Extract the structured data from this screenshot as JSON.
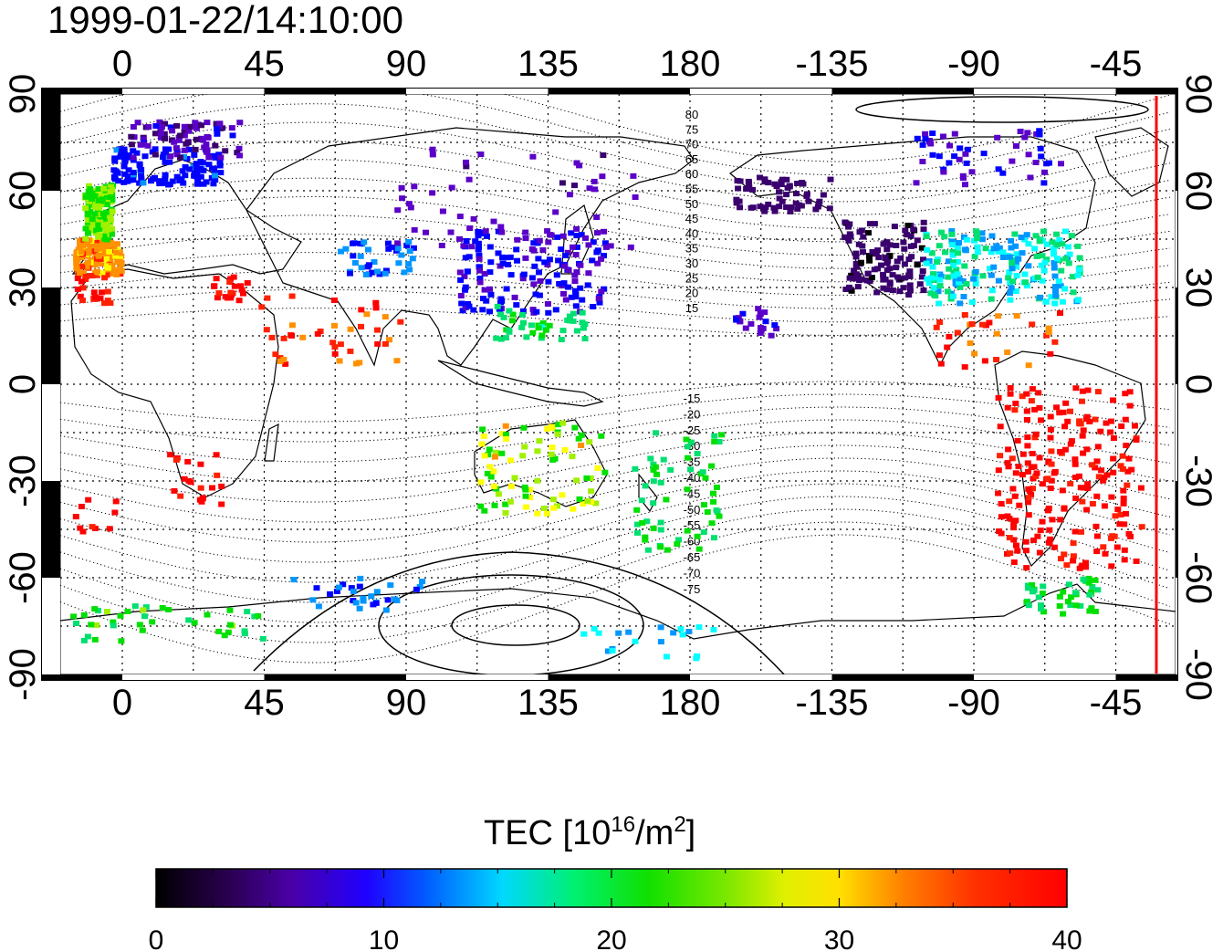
{
  "title": "1999-01-22/14:10:00",
  "map": {
    "lon_ticks": [
      "0",
      "45",
      "90",
      "135",
      "180",
      "-135",
      "-90",
      "-45"
    ],
    "lat_ticks": [
      "90",
      "60",
      "30",
      "0",
      "-30",
      "-60",
      "-90"
    ],
    "contour_labels": [
      "80",
      "75",
      "70",
      "65",
      "60",
      "55",
      "50",
      "45",
      "40",
      "35",
      "30",
      "25",
      "20",
      "15",
      "-15",
      "-20",
      "-25",
      "-30",
      "-35",
      "-40",
      "-45",
      "-50",
      "-55",
      "-60",
      "-65",
      "-70",
      "-75"
    ],
    "terminator_color": "#ff0000",
    "grid": "dotted"
  },
  "colorbar": {
    "label_main": "TEC  [10",
    "label_sup1": "16",
    "label_mid": "/m",
    "label_sup2": "2",
    "label_end": "]",
    "ticks": [
      "0",
      "10",
      "20",
      "30",
      "40"
    ],
    "range": [
      0,
      40
    ],
    "colors": [
      "#000000",
      "#3a006e",
      "#5a00c8",
      "#0000ff",
      "#0096ff",
      "#00ffff",
      "#00e070",
      "#00e000",
      "#a0f000",
      "#ffff00",
      "#ff9000",
      "#ff2000",
      "#ff0000"
    ]
  }
}
